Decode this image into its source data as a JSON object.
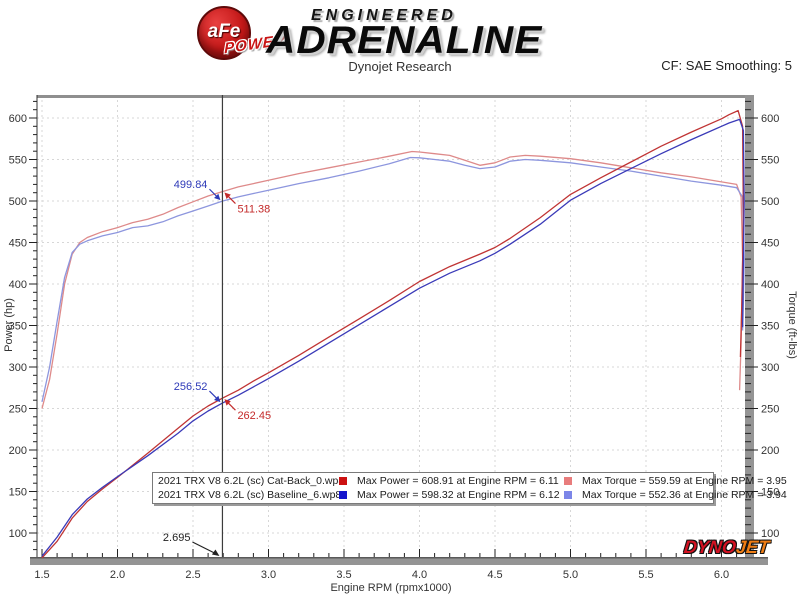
{
  "header": {
    "afe_logo": "aFe",
    "afe_power": "POWER",
    "engineered": "ENGINEERED",
    "adrenaline": "ADRENALINE",
    "subtitle": "Dynojet Research",
    "smoothing": "CF: SAE Smoothing: 5"
  },
  "footer_logo": {
    "dyno": "DYNO",
    "jet": "JET"
  },
  "chart_data": {
    "type": "line",
    "title": "Dynojet Research",
    "xlabel": "Engine RPM (rpmx1000)",
    "ylabel_left": "Power (hp)",
    "ylabel_right": "Torque (ft-lbs)",
    "x_min": 1.467,
    "x_max": 6.156,
    "y_min": 71,
    "y_max": 628,
    "x_major_ticks": [
      1.5,
      2.0,
      2.5,
      3.0,
      3.5,
      4.0,
      4.5,
      5.0,
      5.5,
      6.0
    ],
    "y_major_ticks": [
      100,
      150,
      200,
      250,
      300,
      350,
      400,
      450,
      500,
      550,
      600
    ],
    "grid": true,
    "legend_position": "bottom-center",
    "cursor": {
      "rpm": 2.695,
      "label": "2.695",
      "markers": [
        {
          "label": "499.84",
          "value": 499.84,
          "color": "#2e3ab8",
          "side": "left"
        },
        {
          "label": "511.38",
          "value": 511.38,
          "color": "#c42a2a",
          "side": "right"
        },
        {
          "label": "256.52",
          "value": 256.52,
          "color": "#2e3ab8",
          "side": "left"
        },
        {
          "label": "262.45",
          "value": 262.45,
          "color": "#c42a2a",
          "side": "right"
        }
      ]
    },
    "series": [
      {
        "id": "torque_catback",
        "color": "#de8a8a",
        "points": [
          [
            1.5,
            250
          ],
          [
            1.55,
            285
          ],
          [
            1.6,
            340
          ],
          [
            1.65,
            400
          ],
          [
            1.7,
            436
          ],
          [
            1.75,
            450
          ],
          [
            1.8,
            456
          ],
          [
            1.9,
            463
          ],
          [
            2.0,
            468
          ],
          [
            2.1,
            474
          ],
          [
            2.2,
            478
          ],
          [
            2.3,
            484
          ],
          [
            2.4,
            492
          ],
          [
            2.5,
            499
          ],
          [
            2.6,
            506
          ],
          [
            2.695,
            511.38
          ],
          [
            2.8,
            517
          ],
          [
            2.9,
            521
          ],
          [
            3.0,
            525
          ],
          [
            3.2,
            533
          ],
          [
            3.4,
            540
          ],
          [
            3.6,
            547
          ],
          [
            3.8,
            554
          ],
          [
            3.95,
            559.59
          ],
          [
            4.0,
            559
          ],
          [
            4.1,
            557
          ],
          [
            4.2,
            555
          ],
          [
            4.3,
            549
          ],
          [
            4.4,
            543
          ],
          [
            4.5,
            546
          ],
          [
            4.6,
            553
          ],
          [
            4.7,
            555
          ],
          [
            4.8,
            554
          ],
          [
            5.0,
            551
          ],
          [
            5.2,
            546
          ],
          [
            5.4,
            540
          ],
          [
            5.6,
            534
          ],
          [
            5.8,
            529
          ],
          [
            6.0,
            523
          ],
          [
            6.1,
            520
          ],
          [
            6.13,
            505
          ],
          [
            6.14,
            430
          ],
          [
            6.13,
            330
          ],
          [
            6.12,
            272
          ]
        ]
      },
      {
        "id": "torque_baseline",
        "color": "#8d96de",
        "points": [
          [
            1.5,
            258
          ],
          [
            1.55,
            300
          ],
          [
            1.6,
            355
          ],
          [
            1.65,
            408
          ],
          [
            1.7,
            438
          ],
          [
            1.75,
            448
          ],
          [
            1.8,
            452
          ],
          [
            1.9,
            458
          ],
          [
            2.0,
            462
          ],
          [
            2.1,
            468
          ],
          [
            2.2,
            470
          ],
          [
            2.3,
            475
          ],
          [
            2.4,
            482
          ],
          [
            2.5,
            488
          ],
          [
            2.6,
            494
          ],
          [
            2.695,
            499.84
          ],
          [
            2.8,
            505
          ],
          [
            2.9,
            509
          ],
          [
            3.0,
            513
          ],
          [
            3.2,
            521
          ],
          [
            3.4,
            528
          ],
          [
            3.6,
            536
          ],
          [
            3.8,
            545
          ],
          [
            3.94,
            552.36
          ],
          [
            4.0,
            552
          ],
          [
            4.1,
            550
          ],
          [
            4.2,
            548
          ],
          [
            4.3,
            543
          ],
          [
            4.4,
            539
          ],
          [
            4.5,
            541
          ],
          [
            4.6,
            548
          ],
          [
            4.7,
            550
          ],
          [
            4.8,
            549
          ],
          [
            5.0,
            546
          ],
          [
            5.2,
            541
          ],
          [
            5.4,
            536
          ],
          [
            5.6,
            530
          ],
          [
            5.8,
            524
          ],
          [
            6.0,
            519
          ],
          [
            6.1,
            516
          ],
          [
            6.14,
            505
          ],
          [
            6.15,
            430
          ],
          [
            6.145,
            380
          ],
          [
            6.14,
            344
          ]
        ]
      },
      {
        "id": "power_catback",
        "color": "#c03434",
        "points": [
          [
            1.5,
            70
          ],
          [
            1.6,
            90
          ],
          [
            1.7,
            118
          ],
          [
            1.8,
            138
          ],
          [
            1.9,
            153
          ],
          [
            2.0,
            167
          ],
          [
            2.2,
            196
          ],
          [
            2.4,
            226
          ],
          [
            2.5,
            241
          ],
          [
            2.6,
            253
          ],
          [
            2.695,
            262.45
          ],
          [
            2.8,
            272
          ],
          [
            2.9,
            283
          ],
          [
            3.0,
            293
          ],
          [
            3.2,
            314
          ],
          [
            3.4,
            336
          ],
          [
            3.6,
            358
          ],
          [
            3.8,
            380
          ],
          [
            4.0,
            403
          ],
          [
            4.2,
            421
          ],
          [
            4.4,
            436
          ],
          [
            4.5,
            444
          ],
          [
            4.6,
            455
          ],
          [
            4.8,
            480
          ],
          [
            5.0,
            508
          ],
          [
            5.2,
            528
          ],
          [
            5.4,
            547
          ],
          [
            5.6,
            566
          ],
          [
            5.8,
            583
          ],
          [
            6.0,
            599
          ],
          [
            6.05,
            604
          ],
          [
            6.11,
            608.91
          ],
          [
            6.14,
            590
          ],
          [
            6.145,
            480
          ],
          [
            6.135,
            380
          ],
          [
            6.125,
            312
          ]
        ]
      },
      {
        "id": "power_baseline",
        "color": "#3a3ab8",
        "points": [
          [
            1.5,
            72
          ],
          [
            1.6,
            95
          ],
          [
            1.7,
            122
          ],
          [
            1.8,
            141
          ],
          [
            1.9,
            155
          ],
          [
            2.0,
            168
          ],
          [
            2.2,
            193
          ],
          [
            2.4,
            220
          ],
          [
            2.5,
            235
          ],
          [
            2.6,
            247
          ],
          [
            2.695,
            256.52
          ],
          [
            2.8,
            266
          ],
          [
            2.9,
            276
          ],
          [
            3.0,
            286
          ],
          [
            3.2,
            307
          ],
          [
            3.4,
            329
          ],
          [
            3.6,
            351
          ],
          [
            3.8,
            373
          ],
          [
            4.0,
            395
          ],
          [
            4.2,
            413
          ],
          [
            4.4,
            428
          ],
          [
            4.5,
            437
          ],
          [
            4.6,
            448
          ],
          [
            4.8,
            472
          ],
          [
            5.0,
            501
          ],
          [
            5.2,
            521
          ],
          [
            5.4,
            539
          ],
          [
            5.6,
            557
          ],
          [
            5.8,
            574
          ],
          [
            6.0,
            590
          ],
          [
            6.05,
            594
          ],
          [
            6.12,
            598.32
          ],
          [
            6.145,
            585
          ],
          [
            6.15,
            500
          ],
          [
            6.145,
            430
          ],
          [
            6.14,
            348
          ]
        ]
      }
    ],
    "legend": [
      {
        "name": "2021 TRX V8 6.2L (sc) Cat-Back_0.wp8",
        "power_color": "#cc1111",
        "power_stat": "Max Power = 608.91 at Engine RPM = 6.11",
        "torque_color": "#e87c7c",
        "torque_stat": "Max Torque = 559.59 at Engine RPM = 3.95"
      },
      {
        "name": "2021 TRX V8 6.2L (sc) Baseline_6.wp8",
        "power_color": "#1515cc",
        "power_stat": "Max Power = 598.32 at Engine RPM = 6.12",
        "torque_color": "#7c86e8",
        "torque_stat": "Max Torque = 552.36 at Engine RPM = 3.94"
      }
    ]
  }
}
